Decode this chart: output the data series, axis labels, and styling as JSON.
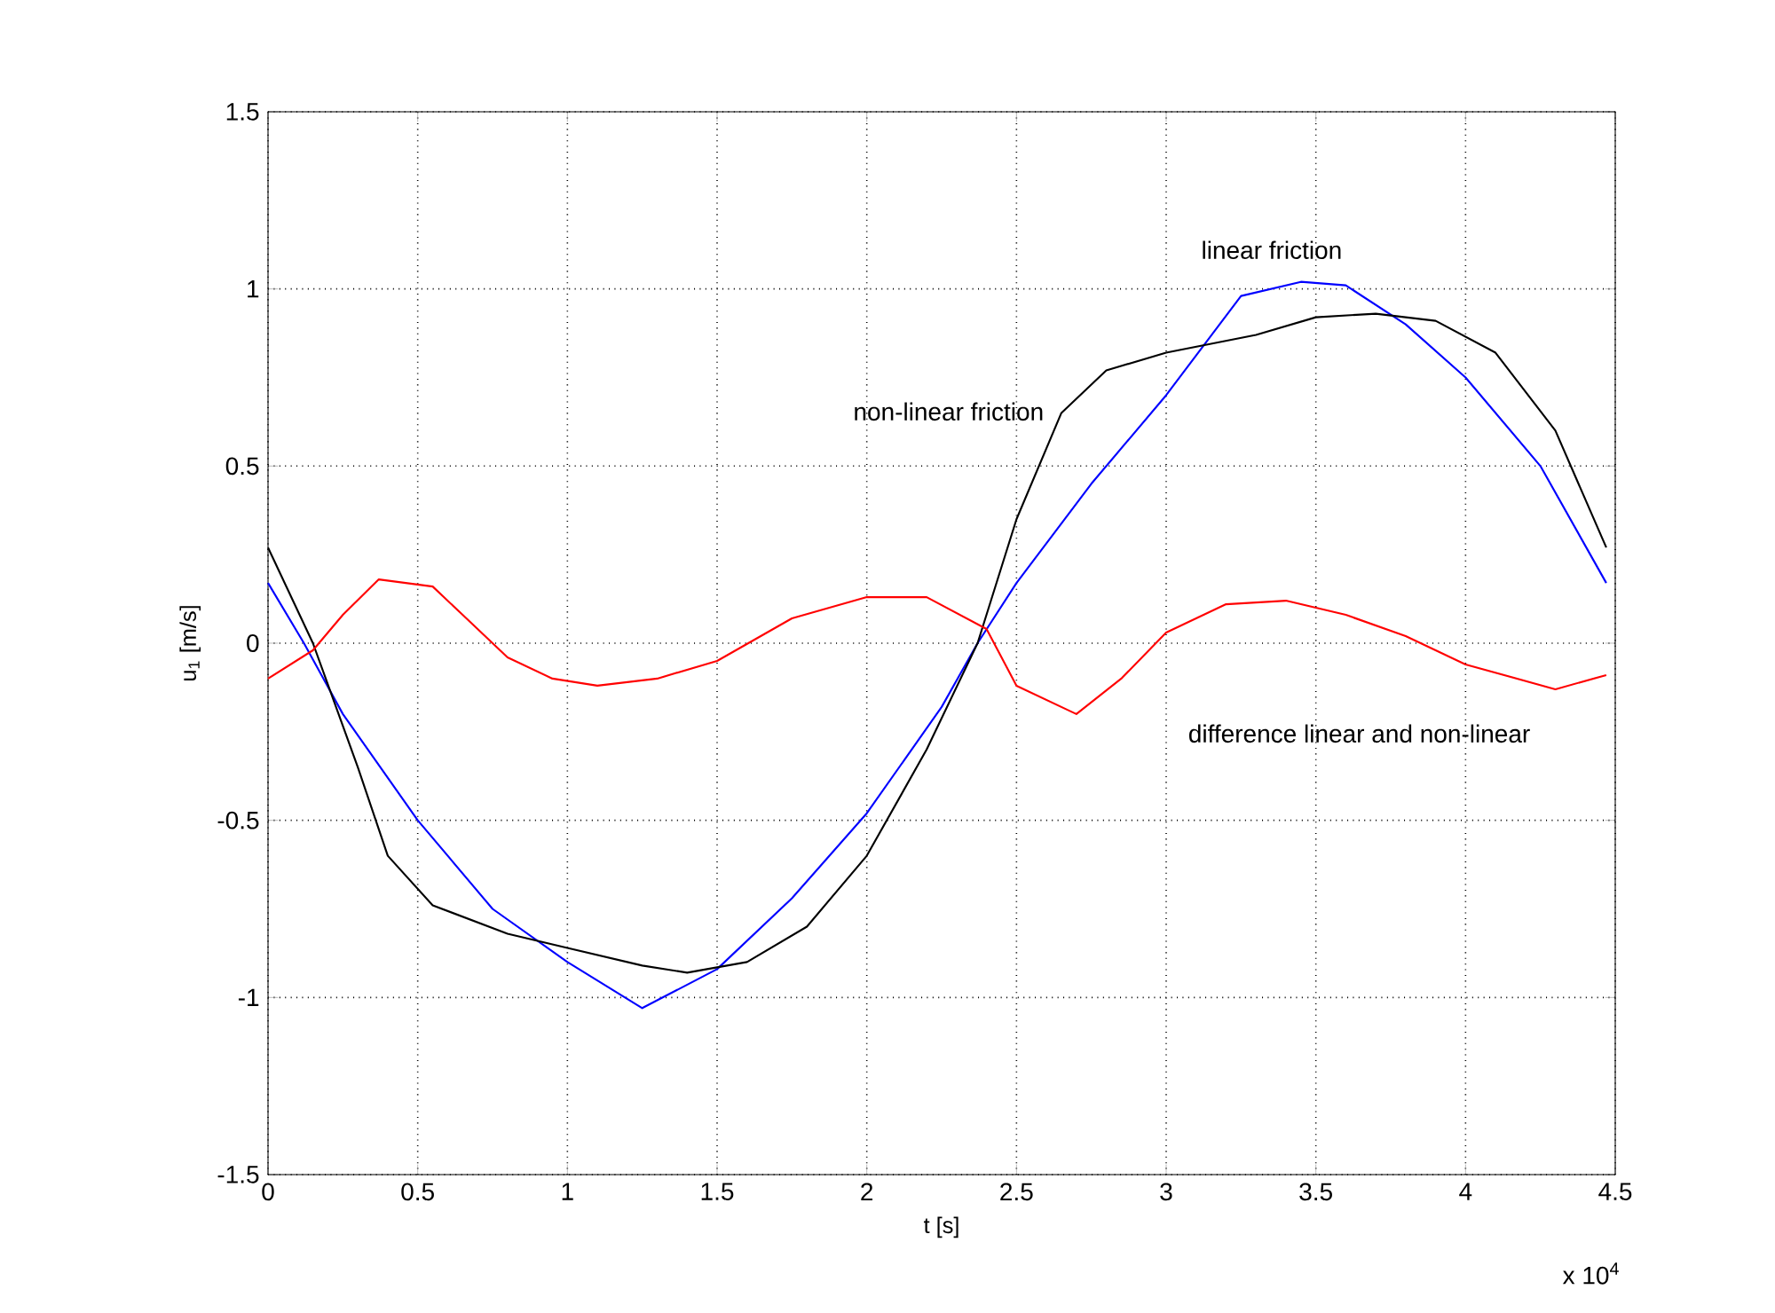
{
  "chart_data": {
    "type": "line",
    "xlabel": "t [s]",
    "ylabel": "u$_{1}$ [m/s]",
    "xlim": [
      0,
      4.5
    ],
    "ylim": [
      -1.5,
      1.5
    ],
    "xticks": [
      0,
      0.5,
      1,
      1.5,
      2,
      2.5,
      3,
      3.5,
      4,
      4.5
    ],
    "yticks": [
      -1.5,
      -1,
      -0.5,
      0,
      0.5,
      1,
      1.5
    ],
    "grid": true,
    "line_style": "solid",
    "marker": "none",
    "series": [
      {
        "name": "linear friction",
        "color": "#0000ff",
        "x": [
          0,
          0.12,
          0.25,
          0.5,
          0.75,
          1,
          1.25,
          1.5,
          1.75,
          2,
          2.25,
          2.37,
          2.5,
          2.75,
          3,
          3.25,
          3.45,
          3.6,
          3.8,
          4,
          4.25,
          4.47
        ],
        "values": [
          0.17,
          0,
          -0.2,
          -0.5,
          -0.75,
          -0.9,
          -1.03,
          -0.92,
          -0.72,
          -0.48,
          -0.18,
          0,
          0.17,
          0.45,
          0.7,
          0.98,
          1.02,
          1.01,
          0.9,
          0.75,
          0.5,
          0.17
        ]
      },
      {
        "name": "non-linear friction",
        "color": "#000000",
        "x": [
          0,
          0.15,
          0.3,
          0.4,
          0.55,
          0.8,
          1,
          1.25,
          1.4,
          1.6,
          1.8,
          2,
          2.2,
          2.37,
          2.5,
          2.65,
          2.8,
          3,
          3.3,
          3.5,
          3.7,
          3.9,
          4.1,
          4.3,
          4.47
        ],
        "values": [
          0.27,
          0,
          -0.35,
          -0.6,
          -0.74,
          -0.82,
          -0.86,
          -0.91,
          -0.93,
          -0.9,
          -0.8,
          -0.6,
          -0.3,
          0,
          0.35,
          0.65,
          0.77,
          0.82,
          0.87,
          0.92,
          0.93,
          0.91,
          0.82,
          0.6,
          0.27
        ]
      },
      {
        "name": "difference linear and non-linear",
        "color": "#ff0000",
        "x": [
          0,
          0.15,
          0.25,
          0.37,
          0.55,
          0.65,
          0.8,
          0.95,
          1.1,
          1.3,
          1.5,
          1.75,
          2,
          2.2,
          2.4,
          2.5,
          2.7,
          2.85,
          3,
          3.2,
          3.4,
          3.6,
          3.8,
          4,
          4.3,
          4.47
        ],
        "values": [
          -0.1,
          -0.02,
          0.08,
          0.18,
          0.16,
          0.08,
          -0.04,
          -0.1,
          -0.12,
          -0.1,
          -0.05,
          0.07,
          0.13,
          0.13,
          0.04,
          -0.12,
          -0.2,
          -0.1,
          0.03,
          0.11,
          0.12,
          0.08,
          0.02,
          -0.06,
          -0.13,
          -0.09
        ]
      }
    ],
    "annotations": [
      "x 10$^{4}$"
    ]
  }
}
